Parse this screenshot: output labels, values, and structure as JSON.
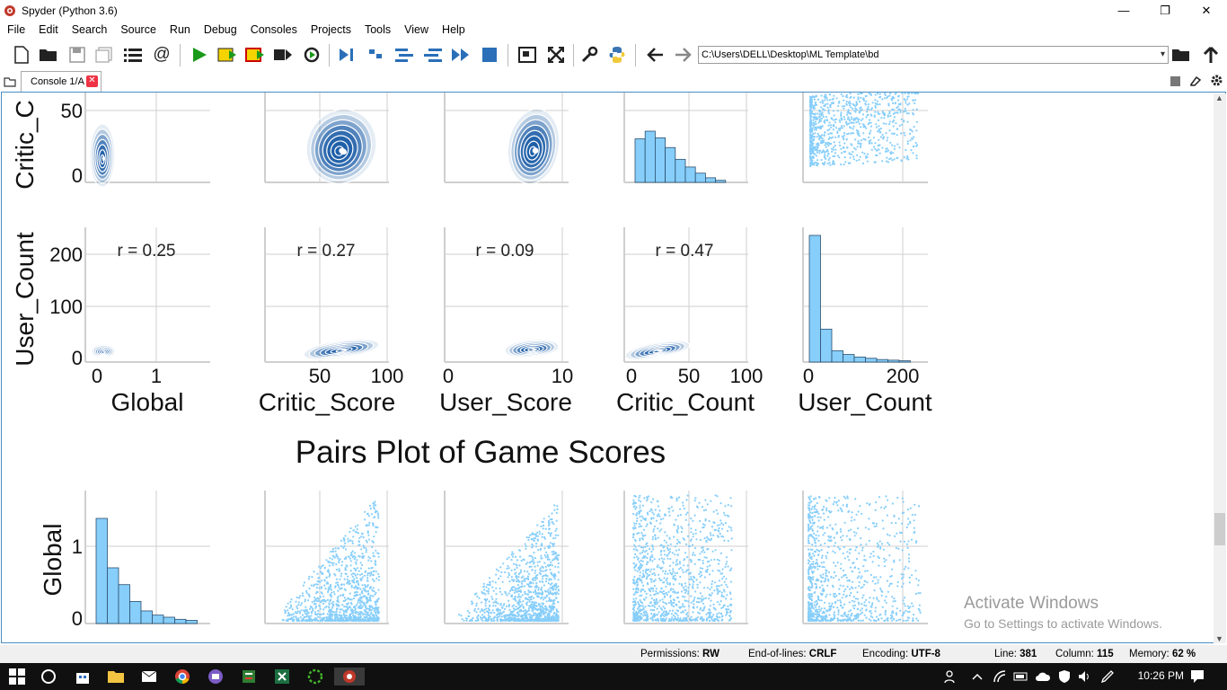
{
  "window": {
    "title": "Spyder (Python 3.6)",
    "controls": {
      "minimize": "—",
      "restore": "❐",
      "close": "✕"
    }
  },
  "menu": [
    "File",
    "Edit",
    "Search",
    "Source",
    "Run",
    "Debug",
    "Consoles",
    "Projects",
    "Tools",
    "View",
    "Help"
  ],
  "toolbar": {
    "path": "C:\\Users\\DELL\\Desktop\\ML Template\\bd"
  },
  "tabs": {
    "console_tab": "Console 1/A"
  },
  "figure": {
    "suptitle": "Pairs Plot of Game Scores",
    "corr_labels": [
      "r = 0.25",
      "r = 0.27",
      "r = 0.09",
      "r = 0.47"
    ],
    "row_labels": [
      "Critic_C",
      "User_Count",
      "Global"
    ],
    "col_labels": [
      "Global",
      "Critic_Score",
      "User_Score",
      "Critic_Count",
      "User_Count"
    ],
    "ticks": {
      "critic_count_row_y": [
        "50",
        "0"
      ],
      "user_count_row_y": [
        "200",
        "100",
        "0"
      ],
      "global_row_y": [
        "1",
        "0"
      ],
      "x_global": [
        "0",
        "1"
      ],
      "x_critic_score": [
        "50",
        "100"
      ],
      "x_user_score": [
        "0",
        "10"
      ],
      "x_critic_count": [
        "0",
        "50",
        "100"
      ],
      "x_user_count": [
        "0",
        "200"
      ]
    },
    "colors": {
      "kde": "#1f5fa8",
      "hist": "#87cefa",
      "scatter": "#87cefa"
    }
  },
  "chart_data": {
    "type": "scatter",
    "title": "Pairs Plot of Game Scores",
    "variables": [
      "Global",
      "Critic_Score",
      "User_Score",
      "Critic_Count",
      "User_Count"
    ],
    "correlations": [
      {
        "x": "Global",
        "y": "User_Count",
        "r": 0.25
      },
      {
        "x": "Critic_Score",
        "y": "User_Count",
        "r": 0.27
      },
      {
        "x": "User_Score",
        "y": "User_Count",
        "r": 0.09
      },
      {
        "x": "Critic_Count",
        "y": "User_Count",
        "r": 0.47
      }
    ],
    "histograms": {
      "Critic_Count": [
        0.85,
        1.0,
        0.87,
        0.68,
        0.45,
        0.3,
        0.18,
        0.09,
        0.04
      ],
      "User_Count": [
        1.0,
        0.26,
        0.09,
        0.06,
        0.04,
        0.03,
        0.02,
        0.015,
        0.01
      ],
      "Global": [
        1.0,
        0.53,
        0.37,
        0.21,
        0.12,
        0.08,
        0.06,
        0.04,
        0.03
      ]
    },
    "grid": true
  },
  "status": {
    "permissions_label": "Permissions:",
    "permissions": "RW",
    "eol_label": "End-of-lines:",
    "eol": "CRLF",
    "encoding_label": "Encoding:",
    "encoding": "UTF-8",
    "line_label": "Line:",
    "line": "381",
    "column_label": "Column:",
    "column": "115",
    "memory_label": "Memory:",
    "memory": "62 %"
  },
  "watermark": {
    "line1": "Activate Windows",
    "line2": "Go to Settings to activate Windows."
  },
  "taskbar": {
    "time": "10:26 PM"
  }
}
